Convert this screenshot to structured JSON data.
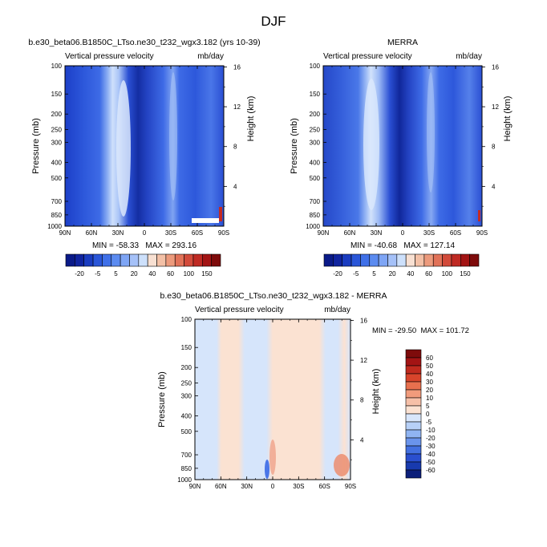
{
  "figure": {
    "title": "DJF"
  },
  "chart_data": [
    {
      "type": "heatmap",
      "title": "b.e30_beta06.B1850C_LTso.ne30_t232_wgx3.182 (yrs 10-39)",
      "left_string": "Vertical pressure velocity",
      "right_string": "mb/day",
      "ylabel": "Pressure (mb)",
      "y2label": "Height (km)",
      "x_ticks": [
        "90N",
        "60N",
        "30N",
        "0",
        "30S",
        "60S",
        "90S"
      ],
      "y_ticks": [
        "100",
        "150",
        "200",
        "250",
        "300",
        "400",
        "500",
        "700",
        "850",
        "1000"
      ],
      "y2_ticks": [
        "16",
        "12",
        "8",
        "4"
      ],
      "ylim": [
        1000,
        100
      ],
      "stats": "MIN = -58.33   MAX = 293.16",
      "min": -58.33,
      "max": 293.16,
      "contour_levels": [
        -20,
        -15,
        -10,
        -5,
        0,
        5,
        10,
        15,
        20,
        30,
        40,
        50,
        60,
        80,
        100,
        120,
        150
      ]
    },
    {
      "type": "heatmap",
      "title": "MERRA",
      "left_string": "Vertical pressure velocity",
      "right_string": "mb/day",
      "ylabel": "Pressure (mb)",
      "y2label": "Height (km)",
      "x_ticks": [
        "90N",
        "60N",
        "30N",
        "0",
        "30S",
        "60S",
        "90S"
      ],
      "y_ticks": [
        "100",
        "150",
        "200",
        "250",
        "300",
        "400",
        "500",
        "700",
        "850",
        "1000"
      ],
      "y2_ticks": [
        "16",
        "12",
        "8",
        "4"
      ],
      "ylim": [
        1000,
        100
      ],
      "stats": "MIN = -40.68   MAX = 127.14",
      "min": -40.68,
      "max": 127.14,
      "contour_levels": [
        -20,
        -15,
        -10,
        -5,
        0,
        5,
        10,
        15,
        20,
        30,
        40,
        50,
        60,
        80,
        100,
        120,
        150
      ]
    },
    {
      "type": "heatmap",
      "title": "b.e30_beta06.B1850C_LTso.ne30_t232_wgx3.182 - MERRA",
      "left_string": "Vertical pressure velocity",
      "right_string": "mb/day",
      "ylabel": "Pressure (mb)",
      "y2label": "Height (km)",
      "x_ticks": [
        "90N",
        "60N",
        "30N",
        "0",
        "30S",
        "60S",
        "90S"
      ],
      "y_ticks": [
        "100",
        "150",
        "200",
        "250",
        "300",
        "400",
        "500",
        "700",
        "850",
        "1000"
      ],
      "y2_ticks": [
        "16",
        "12",
        "8",
        "4"
      ],
      "ylim": [
        1000,
        100
      ],
      "stats": "MIN = -29.50  MAX = 101.72",
      "min": -29.5,
      "max": 101.72,
      "contour_levels": [
        -60,
        -50,
        -40,
        -30,
        -20,
        -10,
        -5,
        0,
        5,
        10,
        20,
        30,
        40,
        50,
        60
      ]
    }
  ],
  "colorbars": {
    "top": {
      "labels": [
        "-20",
        "-5",
        "5",
        "20",
        "40",
        "60",
        "100",
        "150"
      ],
      "colors": [
        "#0a1a88",
        "#10249f",
        "#1a3cc0",
        "#2a56d8",
        "#3f70e8",
        "#5b8bf0",
        "#7ea5f5",
        "#a5c1f8",
        "#cde0fb",
        "#f8e0d2",
        "#f3c0a6",
        "#ec9a7c",
        "#e17258",
        "#d24a3a",
        "#bf2a23",
        "#a31414",
        "#7e0b0b"
      ]
    },
    "diff": {
      "labels": [
        "60",
        "50",
        "40",
        "30",
        "20",
        "10",
        "5",
        "0",
        "-5",
        "-10",
        "-20",
        "-30",
        "-40",
        "-50",
        "-60"
      ],
      "colors": [
        "#7e0b0b",
        "#a31414",
        "#c02a1e",
        "#d8442b",
        "#e8704e",
        "#f19b7c",
        "#f6c0a8",
        "#fbe2d2",
        "#d8e6fb",
        "#b7d0f7",
        "#90b4f2",
        "#6a94ec",
        "#4370e0",
        "#2a4fcf",
        "#183aae",
        "#0c1f7a"
      ]
    }
  }
}
